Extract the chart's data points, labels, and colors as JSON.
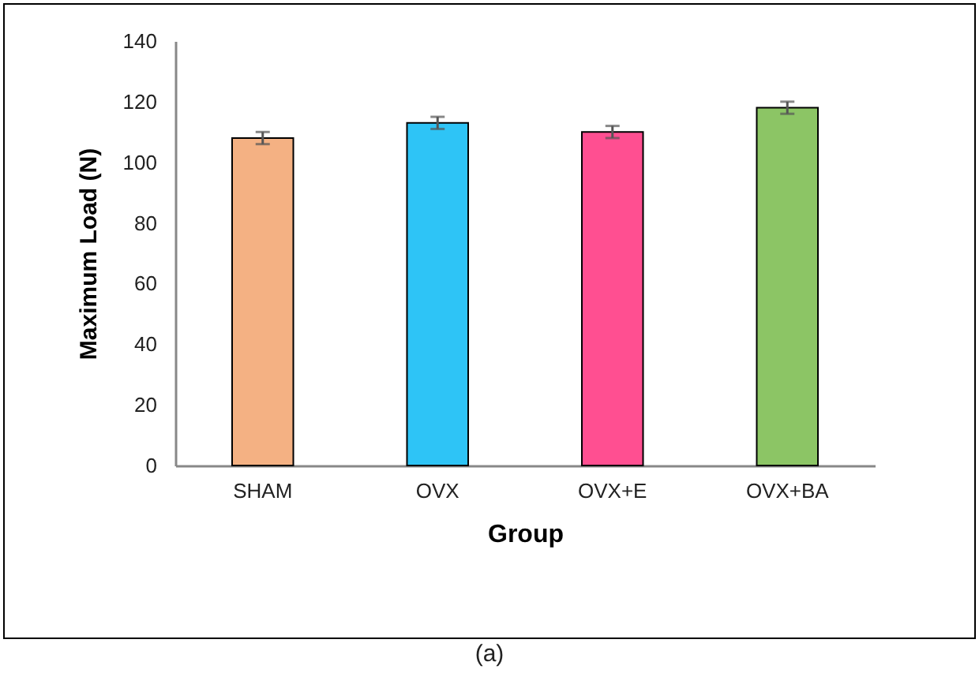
{
  "chart_data": {
    "type": "bar",
    "xlabel": "Group",
    "ylabel": "Maximum Load (N)",
    "categories": [
      "SHAM",
      "OVX",
      "OVX+E",
      "OVX+BA"
    ],
    "values": [
      108,
      113,
      110,
      118
    ],
    "colors": [
      "#f4b183",
      "#2ec4f6",
      "#ff4f91",
      "#8cc565"
    ],
    "errors": [
      2,
      2,
      2,
      2
    ],
    "ylim": [
      0,
      140
    ],
    "yticks": [
      0,
      20,
      40,
      60,
      80,
      100,
      120,
      140
    ],
    "grid": false,
    "legend": false,
    "annotations": [
      "(a)"
    ]
  }
}
